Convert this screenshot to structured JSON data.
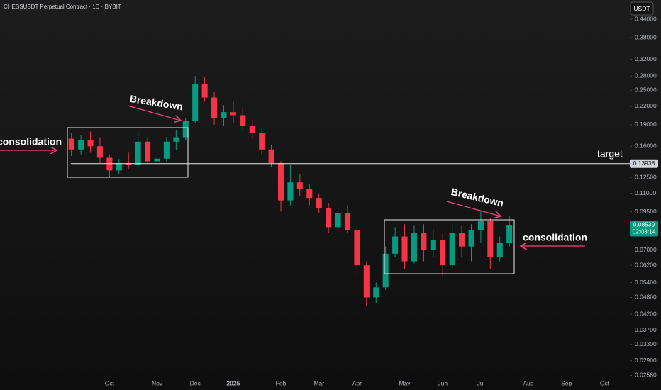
{
  "chart_data": {
    "type": "candlestick",
    "title": "CHESSUSDT Perpetual Contract · 1D · BYBIT",
    "currency": "USDT",
    "categories": [
      null,
      null,
      null,
      null,
      null,
      null,
      null,
      null,
      null,
      null,
      null,
      "Oct",
      null,
      null,
      null,
      null,
      "Nov",
      null,
      null,
      null,
      "Dec",
      null,
      null,
      null,
      "2025",
      null,
      null,
      null,
      null,
      "Feb",
      null,
      null,
      null,
      "Mar",
      null,
      null,
      null,
      "Apr",
      null,
      null,
      null,
      null,
      "May",
      null,
      null,
      null,
      "Jun",
      null,
      null,
      null,
      "Jul",
      null,
      null,
      null,
      null,
      "Aug",
      null,
      null,
      null,
      "Sep",
      null,
      null,
      null,
      "Oct",
      null,
      null
    ],
    "open": [
      null,
      null,
      null,
      null,
      null,
      null,
      null,
      0.17,
      0.156,
      0.168,
      0.16,
      0.146,
      0.132,
      0.14,
      0.138,
      0.166,
      0.142,
      0.145,
      0.166,
      0.172,
      0.196,
      0.262,
      0.236,
      0.2,
      0.21,
      0.205,
      0.188,
      0.178,
      0.156,
      0.14,
      0.104,
      0.12,
      0.114,
      0.106,
      0.098,
      0.084,
      0.094,
      0.082,
      0.062,
      0.048,
      0.052,
      0.068,
      0.078,
      0.064,
      0.08,
      0.07,
      0.076,
      0.062,
      0.08,
      0.072,
      0.082,
      0.088,
      0.066,
      0.074,
      null,
      null,
      null,
      null,
      null,
      null,
      null,
      null,
      null,
      null,
      null,
      null
    ],
    "high": [
      null,
      null,
      null,
      null,
      null,
      null,
      null,
      0.178,
      0.175,
      0.18,
      0.172,
      0.15,
      0.145,
      0.152,
      0.178,
      0.172,
      0.148,
      0.172,
      0.182,
      0.2,
      0.28,
      0.278,
      0.246,
      0.222,
      0.228,
      0.218,
      0.198,
      0.185,
      0.162,
      0.142,
      0.138,
      0.128,
      0.118,
      0.11,
      0.102,
      0.098,
      0.1,
      0.084,
      0.064,
      0.054,
      0.072,
      0.084,
      0.086,
      0.085,
      0.086,
      0.082,
      0.08,
      0.086,
      0.085,
      0.086,
      0.096,
      0.09,
      0.078,
      0.092,
      null,
      null,
      null,
      null,
      null,
      null,
      null,
      null,
      null,
      null,
      null,
      null
    ],
    "low": [
      null,
      null,
      null,
      null,
      null,
      null,
      null,
      0.148,
      0.15,
      0.152,
      0.14,
      0.125,
      0.128,
      0.134,
      0.136,
      0.14,
      0.13,
      0.142,
      0.155,
      0.168,
      0.192,
      0.228,
      0.19,
      0.188,
      0.192,
      0.182,
      0.17,
      0.15,
      0.136,
      0.095,
      0.1,
      0.108,
      0.1,
      0.094,
      0.08,
      0.082,
      0.08,
      0.058,
      0.045,
      0.046,
      0.051,
      0.066,
      0.06,
      0.063,
      0.064,
      0.066,
      0.057,
      0.06,
      0.066,
      0.064,
      0.074,
      0.06,
      0.064,
      0.072,
      null,
      null,
      null,
      null,
      null,
      null,
      null,
      null,
      null,
      null,
      null,
      null
    ],
    "close": [
      null,
      null,
      null,
      null,
      null,
      null,
      null,
      0.156,
      0.168,
      0.16,
      0.146,
      0.132,
      0.14,
      0.138,
      0.166,
      0.142,
      0.145,
      0.166,
      0.172,
      0.196,
      0.262,
      0.236,
      0.2,
      0.21,
      0.205,
      0.188,
      0.178,
      0.156,
      0.14,
      0.104,
      0.12,
      0.114,
      0.106,
      0.098,
      0.084,
      0.094,
      0.082,
      0.062,
      0.048,
      0.052,
      0.068,
      0.078,
      0.064,
      0.08,
      0.07,
      0.076,
      0.062,
      0.08,
      0.072,
      0.082,
      0.088,
      0.066,
      0.074,
      0.08539,
      null,
      null,
      null,
      null,
      null,
      null,
      null,
      null,
      null,
      null,
      null,
      null
    ],
    "up_color": "#089981",
    "down_color": "#f23645",
    "log_scale": true,
    "ylim": [
      0.0243,
      0.513
    ],
    "yticks": [
      {
        "value": 0.44,
        "label": "0.44000"
      },
      {
        "value": 0.38,
        "label": "0.38000"
      },
      {
        "value": 0.32,
        "label": "0.32000"
      },
      {
        "value": 0.28,
        "label": "0.28000"
      },
      {
        "value": 0.25,
        "label": "0.25000"
      },
      {
        "value": 0.22,
        "label": "0.22000"
      },
      {
        "value": 0.19,
        "label": "0.19000"
      },
      {
        "value": 0.16,
        "label": "0.16000"
      },
      {
        "value": 0.125,
        "label": "0.12500"
      },
      {
        "value": 0.11,
        "label": "0.11000"
      },
      {
        "value": 0.095,
        "label": "0.09500"
      },
      {
        "value": 0.07,
        "label": "0.07000"
      },
      {
        "value": 0.062,
        "label": "0.06200"
      },
      {
        "value": 0.054,
        "label": "0.05400"
      },
      {
        "value": 0.048,
        "label": "0.04800"
      },
      {
        "value": 0.042,
        "label": "0.04200"
      },
      {
        "value": 0.037,
        "label": "0.03700"
      },
      {
        "value": 0.033,
        "label": "0.03300"
      },
      {
        "value": 0.029,
        "label": "0.02900"
      },
      {
        "value": 0.0258,
        "label": "0.02580"
      }
    ],
    "target_line": {
      "value": 0.13938,
      "label": "target"
    },
    "last_price": 0.08539,
    "countdown": "02:03:14",
    "annotations": [
      "consolidation",
      "Breakdown",
      "Breakdown",
      "consolidation"
    ]
  }
}
